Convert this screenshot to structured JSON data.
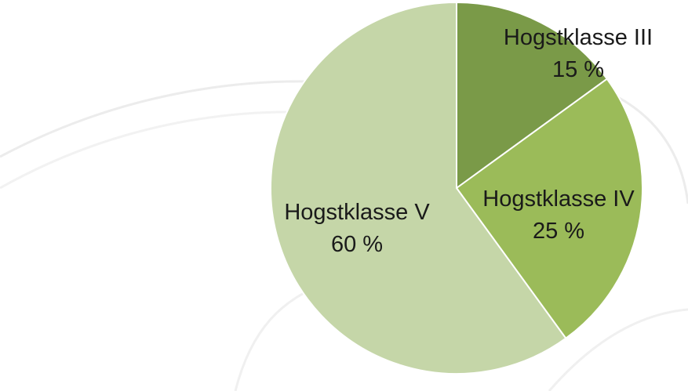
{
  "chart_data": {
    "type": "pie",
    "categories": [
      "Hogstklasse III",
      "Hogstklasse IV",
      "Hogstklasse V"
    ],
    "values": [
      15,
      25,
      60
    ],
    "value_labels": [
      "15 %",
      "25 %",
      "60 %"
    ],
    "colors": [
      "#7a9a48",
      "#9bbb59",
      "#c5d6a8"
    ]
  }
}
